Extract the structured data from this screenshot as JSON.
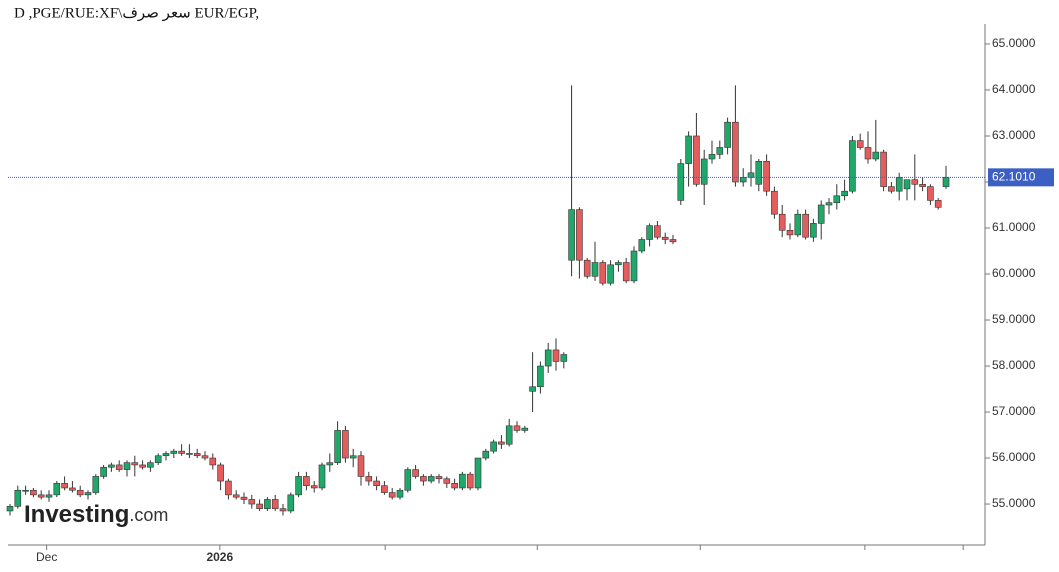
{
  "chart_data": {
    "type": "candlestick",
    "title": "D ,PGE/RUE:XF\\سعر صرف EUR/EGP,",
    "logo": {
      "brand": "Investing",
      "suffix": ".com"
    },
    "up_color": "#1fa86a",
    "down_color": "#e35d5d",
    "open": [
      54.85,
      54.95,
      55.3,
      55.3,
      55.2,
      55.15,
      55.2,
      55.45,
      55.35,
      55.3,
      55.2,
      55.25,
      55.6,
      55.8,
      55.85,
      55.75,
      55.9,
      55.85,
      55.8,
      55.9,
      56.05,
      56.1,
      56.15,
      56.1,
      56.1,
      56.05,
      56.0,
      55.85,
      55.5,
      55.2,
      55.15,
      55.1,
      55.0,
      54.9,
      55.1,
      54.9,
      54.85,
      55.2,
      55.6,
      55.4,
      55.35,
      55.85,
      55.9,
      56.6,
      56.0,
      56.05,
      55.6,
      55.5,
      55.4,
      55.25,
      55.15,
      55.3,
      55.75,
      55.6,
      55.5,
      55.6,
      55.55,
      55.45,
      55.35,
      55.65,
      55.35,
      56.0,
      56.15,
      56.35,
      56.3,
      56.7,
      56.6,
      57.45,
      57.55,
      58.0,
      58.35,
      58.1,
      60.3,
      61.4,
      60.3,
      59.95,
      60.25,
      59.8,
      60.2,
      60.25,
      59.85,
      60.5,
      60.75,
      61.05,
      60.8,
      60.75,
      61.6,
      62.4,
      63.0,
      61.95,
      62.5,
      62.6,
      62.75,
      63.3,
      62.0,
      62.1,
      61.95,
      62.45,
      61.8,
      61.3,
      60.95,
      60.85,
      61.3,
      60.8,
      61.1,
      61.5,
      61.55,
      61.7,
      61.8,
      62.9,
      62.75,
      62.5,
      62.65,
      61.9,
      61.8,
      61.85,
      62.05,
      61.95,
      61.9,
      61.6,
      61.9
    ],
    "high": [
      55.0,
      55.4,
      55.4,
      55.35,
      55.3,
      55.3,
      55.5,
      55.6,
      55.5,
      55.4,
      55.3,
      55.65,
      55.85,
      55.9,
      55.95,
      55.95,
      56.05,
      55.95,
      55.95,
      56.1,
      56.15,
      56.2,
      56.3,
      56.3,
      56.2,
      56.15,
      56.1,
      55.9,
      55.55,
      55.3,
      55.25,
      55.2,
      55.1,
      55.15,
      55.2,
      55.0,
      55.25,
      55.7,
      55.7,
      55.5,
      55.9,
      56.1,
      56.8,
      56.7,
      56.2,
      56.15,
      55.7,
      55.6,
      55.5,
      55.35,
      55.35,
      55.8,
      55.85,
      55.65,
      55.65,
      55.65,
      55.6,
      55.55,
      55.7,
      55.7,
      56.0,
      56.2,
      56.4,
      56.5,
      56.85,
      56.8,
      56.7,
      58.3,
      58.1,
      58.5,
      58.6,
      58.3,
      64.1,
      61.45,
      60.35,
      60.7,
      60.3,
      60.3,
      60.3,
      60.35,
      60.6,
      60.8,
      61.1,
      61.15,
      60.9,
      60.85,
      62.5,
      63.1,
      63.5,
      62.7,
      62.9,
      62.9,
      63.4,
      64.1,
      62.3,
      62.6,
      62.5,
      62.6,
      61.9,
      61.5,
      61.1,
      61.4,
      61.4,
      61.2,
      61.6,
      61.65,
      61.95,
      62.05,
      63.0,
      63.05,
      63.1,
      63.35,
      62.7,
      62.0,
      62.2,
      62.05,
      62.6,
      62.1,
      61.95,
      61.65,
      62.35
    ],
    "low": [
      54.75,
      54.9,
      55.2,
      55.15,
      55.1,
      55.05,
      55.15,
      55.3,
      55.25,
      55.15,
      55.1,
      55.2,
      55.55,
      55.7,
      55.7,
      55.6,
      55.6,
      55.75,
      55.7,
      55.85,
      55.95,
      56.0,
      56.05,
      56.0,
      56.0,
      55.95,
      55.75,
      55.3,
      55.1,
      55.1,
      55.0,
      54.9,
      54.85,
      54.85,
      54.85,
      54.75,
      54.8,
      55.15,
      55.3,
      55.25,
      55.3,
      55.7,
      55.85,
      55.9,
      55.8,
      55.4,
      55.4,
      55.3,
      55.2,
      55.1,
      55.1,
      55.25,
      55.55,
      55.4,
      55.45,
      55.45,
      55.35,
      55.3,
      55.3,
      55.3,
      55.3,
      55.95,
      56.1,
      56.2,
      56.25,
      56.55,
      56.55,
      57.0,
      57.4,
      57.85,
      57.9,
      57.95,
      59.95,
      59.9,
      59.9,
      59.85,
      59.75,
      59.75,
      60.05,
      59.8,
      59.8,
      60.45,
      60.6,
      60.75,
      60.65,
      60.65,
      61.5,
      61.9,
      61.9,
      61.5,
      62.4,
      62.5,
      62.6,
      61.9,
      61.9,
      61.9,
      61.8,
      61.7,
      61.2,
      60.8,
      60.75,
      60.8,
      60.75,
      60.7,
      60.75,
      61.3,
      61.4,
      61.6,
      61.75,
      62.7,
      62.4,
      62.45,
      61.8,
      61.75,
      61.6,
      61.6,
      61.6,
      61.8,
      61.5,
      61.4,
      61.85
    ],
    "close": [
      54.95,
      55.3,
      55.3,
      55.2,
      55.15,
      55.2,
      55.45,
      55.35,
      55.3,
      55.2,
      55.25,
      55.6,
      55.8,
      55.85,
      55.75,
      55.9,
      55.85,
      55.8,
      55.9,
      56.05,
      56.1,
      56.15,
      56.1,
      56.1,
      56.05,
      56.0,
      55.85,
      55.5,
      55.2,
      55.15,
      55.1,
      55.0,
      54.9,
      55.1,
      54.9,
      54.85,
      55.2,
      55.6,
      55.4,
      55.35,
      55.85,
      55.9,
      56.6,
      56.0,
      56.05,
      55.6,
      55.5,
      55.4,
      55.25,
      55.15,
      55.3,
      55.75,
      55.6,
      55.5,
      55.6,
      55.55,
      55.45,
      55.35,
      55.65,
      55.35,
      56.0,
      56.15,
      56.35,
      56.3,
      56.7,
      56.6,
      56.65,
      57.55,
      58.0,
      58.35,
      58.1,
      58.25,
      61.4,
      60.3,
      59.95,
      60.25,
      59.8,
      60.2,
      60.25,
      59.85,
      60.5,
      60.75,
      61.05,
      60.8,
      60.75,
      60.7,
      62.4,
      63.0,
      61.95,
      62.5,
      62.6,
      62.75,
      63.3,
      62.0,
      62.1,
      62.2,
      62.45,
      61.8,
      61.3,
      60.95,
      60.85,
      61.3,
      60.8,
      61.1,
      61.5,
      61.55,
      61.7,
      61.8,
      62.9,
      62.75,
      62.5,
      62.65,
      61.9,
      61.8,
      62.1,
      62.05,
      61.95,
      61.9,
      61.6,
      61.45,
      62.1
    ],
    "last_price": {
      "value": 62.101,
      "label": "62.1010"
    },
    "last_price_color": "#3c5fc4",
    "ylim": [
      54.11,
      65.26
    ],
    "yticks": [
      {
        "value": 55,
        "label": "55.0000"
      },
      {
        "value": 56,
        "label": "56.0000"
      },
      {
        "value": 57,
        "label": "57.0000"
      },
      {
        "value": 58,
        "label": "58.0000"
      },
      {
        "value": 59,
        "label": "59.0000"
      },
      {
        "value": 60,
        "label": "60.0000"
      },
      {
        "value": 61,
        "label": "61.0000"
      },
      {
        "value": 62,
        "label": "62.0000"
      },
      {
        "value": 63,
        "label": "63.0000"
      },
      {
        "value": 64,
        "label": "64.0000"
      },
      {
        "value": 65,
        "label": "65.0000"
      }
    ],
    "xticks": [
      {
        "value": 4.7,
        "label": "Dec"
      },
      {
        "value": 26.9,
        "label": "2026"
      },
      48.1,
      67.6,
      88.5,
      109.6,
      122.2
    ]
  }
}
